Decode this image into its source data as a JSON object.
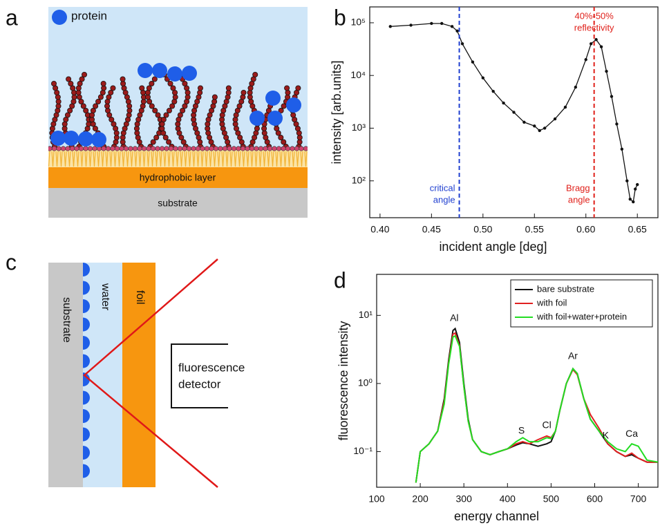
{
  "panel_labels": [
    "a",
    "b",
    "c",
    "d"
  ],
  "diagram_a": {
    "legend": "protein",
    "layers": [
      "hydrophobic layer",
      "substrate"
    ]
  },
  "diagram_c": {
    "labels": [
      "substrate",
      "water",
      "foil"
    ],
    "detector": [
      "fluorescence",
      "detector"
    ]
  },
  "chart_data": [
    {
      "type": "line",
      "ylabel": "intensity [arb.units]",
      "xlabel": "incident angle [deg]",
      "log_y": true,
      "markers": true,
      "color": "#111111",
      "x": [
        0.41,
        0.43,
        0.45,
        0.46,
        0.47,
        0.475,
        0.48,
        0.49,
        0.5,
        0.51,
        0.52,
        0.53,
        0.54,
        0.55,
        0.555,
        0.56,
        0.57,
        0.58,
        0.59,
        0.6,
        0.605,
        0.61,
        0.615,
        0.62,
        0.625,
        0.63,
        0.635,
        0.64,
        0.643,
        0.646,
        0.648,
        0.65
      ],
      "values": [
        85000,
        90000,
        97000,
        97000,
        85000,
        70000,
        40000,
        18000,
        9000,
        5000,
        3000,
        2000,
        1300,
        1100,
        900,
        1000,
        1500,
        2500,
        6000,
        20000,
        40000,
        48000,
        35000,
        12000,
        4000,
        1200,
        400,
        100,
        45,
        40,
        70,
        85
      ],
      "xlim": [
        0.39,
        0.67
      ],
      "ylim": [
        20,
        200000
      ],
      "xticks": [
        {
          "value": 0.4,
          "label": "0.40"
        },
        0.45,
        {
          "value": 0.5,
          "label": "0.50"
        },
        0.55,
        {
          "value": 0.6,
          "label": "0.60"
        },
        0.65
      ],
      "yticks": [
        {
          "value": 100,
          "label": "10²"
        },
        {
          "value": 1000,
          "label": "10³"
        },
        {
          "value": 10000,
          "label": "10⁴"
        },
        {
          "value": 100000,
          "label": "10⁵"
        }
      ],
      "vlines": [
        {
          "x": 0.477,
          "color": "#1f3fd0",
          "labels": [
            "critical",
            "angle"
          ]
        },
        {
          "x": 0.608,
          "color": "#e0201a",
          "labels": [
            "Bragg",
            "angle"
          ],
          "top_labels": [
            "40%-50%",
            "reflectivity"
          ]
        }
      ]
    },
    {
      "type": "line",
      "ylabel": "fluorescence intensity",
      "xlabel": "energy channel",
      "log_y": true,
      "legend": "upper right",
      "x": [
        190,
        200,
        220,
        240,
        255,
        265,
        275,
        280,
        290,
        300,
        310,
        320,
        340,
        360,
        380,
        400,
        420,
        435,
        450,
        470,
        490,
        500,
        510,
        520,
        535,
        550,
        560,
        575,
        590,
        610,
        630,
        650,
        670,
        685,
        700,
        720,
        745
      ],
      "series": [
        {
          "name": "bare substrate",
          "color": "#111111",
          "values": [
            0.035,
            0.1,
            0.13,
            0.2,
            0.6,
            2.2,
            6.0,
            6.4,
            4.0,
            1.0,
            0.3,
            0.15,
            0.1,
            0.09,
            0.1,
            0.11,
            0.125,
            0.135,
            0.13,
            0.12,
            0.13,
            0.14,
            0.2,
            0.4,
            1.0,
            1.65,
            1.4,
            0.6,
            0.3,
            0.2,
            0.13,
            0.1,
            0.085,
            0.09,
            0.08,
            0.07,
            0.07
          ]
        },
        {
          "name": "with foil",
          "color": "#e02020",
          "values": [
            0.035,
            0.1,
            0.13,
            0.2,
            0.55,
            2.0,
            5.3,
            5.5,
            3.6,
            0.9,
            0.28,
            0.15,
            0.1,
            0.09,
            0.1,
            0.11,
            0.13,
            0.14,
            0.13,
            0.15,
            0.17,
            0.16,
            0.2,
            0.4,
            1.0,
            1.6,
            1.35,
            0.6,
            0.35,
            0.22,
            0.13,
            0.1,
            0.085,
            0.095,
            0.08,
            0.07,
            0.07
          ]
        },
        {
          "name": "with foil+water+protein",
          "color": "#22dd22",
          "values": [
            0.035,
            0.1,
            0.13,
            0.2,
            0.5,
            1.9,
            4.8,
            5.0,
            3.5,
            0.9,
            0.28,
            0.15,
            0.1,
            0.09,
            0.1,
            0.11,
            0.14,
            0.16,
            0.14,
            0.14,
            0.16,
            0.155,
            0.2,
            0.4,
            1.0,
            1.65,
            1.4,
            0.6,
            0.3,
            0.2,
            0.14,
            0.11,
            0.1,
            0.13,
            0.12,
            0.075,
            0.07
          ]
        }
      ],
      "xlim": [
        100,
        745
      ],
      "ylim": [
        0.03,
        40
      ],
      "xticks": [
        100,
        200,
        300,
        400,
        500,
        600,
        700
      ],
      "yticks": [
        {
          "value": 0.1,
          "label": "10⁻¹"
        },
        {
          "value": 1,
          "label": "10⁰"
        },
        {
          "value": 10,
          "label": "10¹"
        }
      ],
      "annotations": [
        {
          "text": "Al",
          "x": 278,
          "y": 9
        },
        {
          "text": "S",
          "x": 432,
          "y": 0.2
        },
        {
          "text": "Cl",
          "x": 490,
          "y": 0.24
        },
        {
          "text": "Ar",
          "x": 550,
          "y": 2.5
        },
        {
          "text": "K",
          "x": 625,
          "y": 0.17
        },
        {
          "text": "Ca",
          "x": 685,
          "y": 0.18
        }
      ]
    }
  ]
}
